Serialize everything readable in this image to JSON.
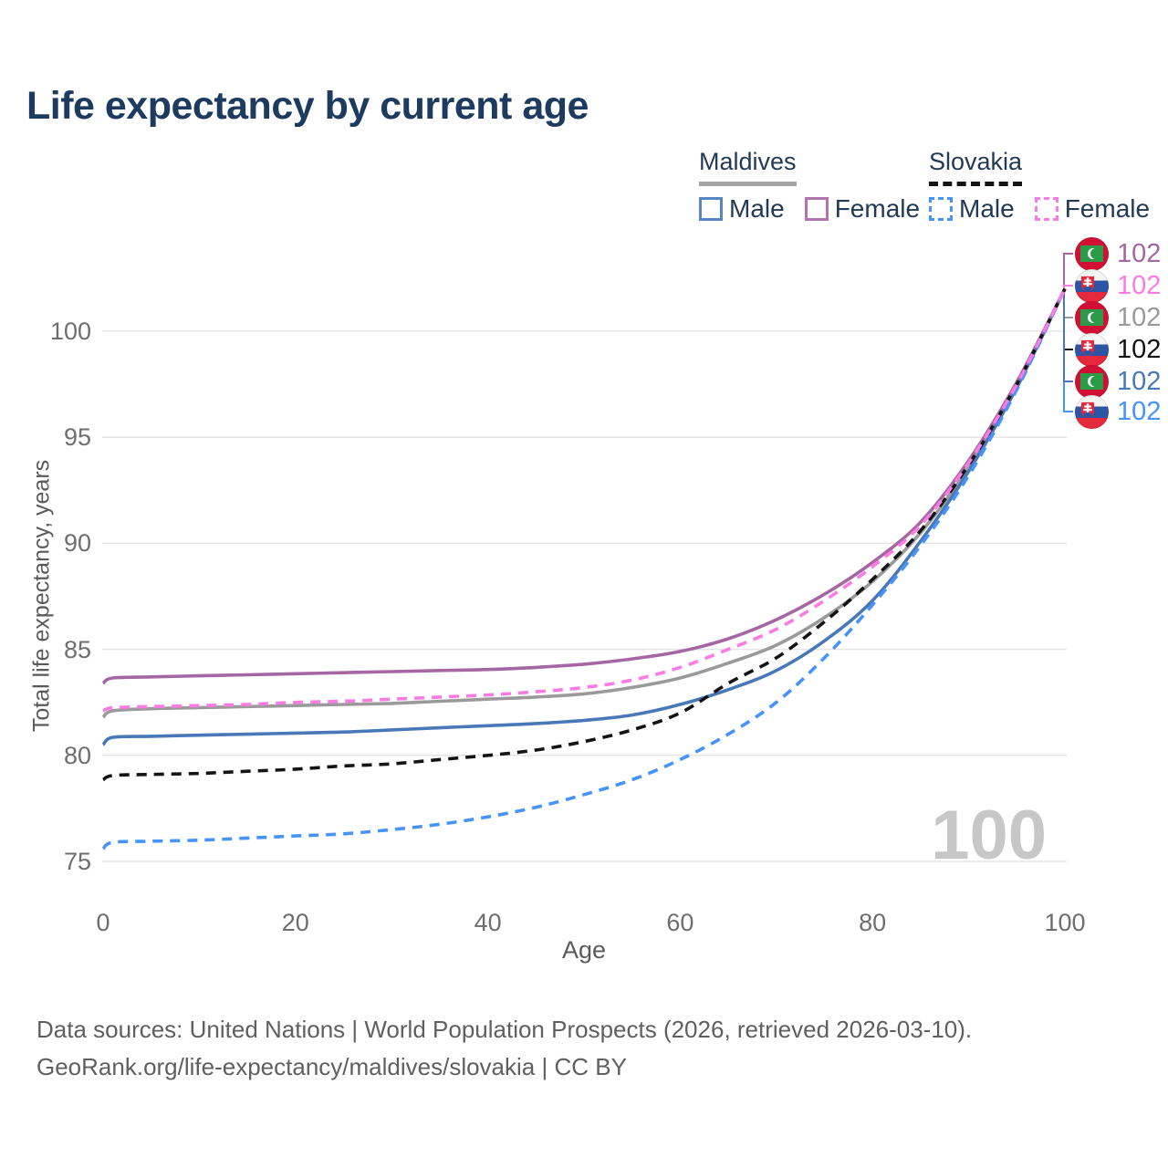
{
  "title": "Life expectancy by current age",
  "legend": {
    "groups": [
      {
        "country": "Maldives",
        "line_style": "solid",
        "items": [
          {
            "label": "Male",
            "color": "#5b84c4"
          },
          {
            "label": "Female",
            "color": "#b273ae"
          }
        ]
      },
      {
        "country": "Slovakia",
        "line_style": "dashed",
        "items": [
          {
            "label": "Male",
            "color": "#4693fa"
          },
          {
            "label": "Female",
            "color": "#fb7be4"
          }
        ]
      }
    ]
  },
  "chart_data": {
    "type": "line",
    "xlabel": "Age",
    "ylabel": "Total life expectancy, years",
    "xticks": [
      0,
      20,
      40,
      60,
      80,
      100
    ],
    "yticks": [
      75,
      80,
      85,
      90,
      95,
      100
    ],
    "xlim": [
      0,
      100
    ],
    "ylim": [
      75,
      102
    ],
    "grid": "horizontal",
    "age_counter": "100",
    "x": [
      0,
      1,
      5,
      10,
      15,
      20,
      25,
      30,
      35,
      40,
      45,
      50,
      55,
      60,
      65,
      70,
      75,
      80,
      85,
      90,
      95,
      100
    ],
    "series": [
      {
        "name": "Maldives Female",
        "country": "Maldives",
        "sex": "Female",
        "flag": "mv",
        "style": "solid",
        "color": "#a666a3",
        "end_label": "102",
        "values": [
          83.4,
          83.65,
          83.7,
          83.75,
          83.8,
          83.85,
          83.9,
          83.95,
          84.0,
          84.05,
          84.15,
          84.3,
          84.55,
          84.9,
          85.5,
          86.4,
          87.6,
          89.1,
          91.0,
          93.9,
          97.6,
          102
        ]
      },
      {
        "name": "Slovakia Female",
        "country": "Slovakia",
        "sex": "Female",
        "flag": "sk",
        "style": "dashed",
        "color": "#fb7be4",
        "end_label": "102",
        "values": [
          82.1,
          82.25,
          82.3,
          82.35,
          82.4,
          82.5,
          82.55,
          82.65,
          82.75,
          82.85,
          83.0,
          83.2,
          83.55,
          84.15,
          85.0,
          85.95,
          87.3,
          88.9,
          90.85,
          93.8,
          97.5,
          102
        ]
      },
      {
        "name": "Maldives",
        "country": "Maldives",
        "sex": "Both",
        "flag": "mv",
        "style": "solid",
        "color": "#9a9a9a",
        "end_label": "102",
        "values": [
          81.8,
          82.1,
          82.2,
          82.25,
          82.3,
          82.35,
          82.4,
          82.45,
          82.55,
          82.65,
          82.75,
          82.9,
          83.2,
          83.65,
          84.35,
          85.2,
          86.5,
          88.2,
          90.5,
          93.6,
          97.45,
          102
        ]
      },
      {
        "name": "Slovakia",
        "country": "Slovakia",
        "sex": "Both",
        "flag": "sk",
        "style": "dashed",
        "color": "#141414",
        "end_label": "102",
        "values": [
          78.85,
          79.05,
          79.1,
          79.15,
          79.25,
          79.35,
          79.5,
          79.6,
          79.8,
          80.0,
          80.25,
          80.65,
          81.2,
          82.0,
          83.4,
          84.6,
          86.3,
          88.3,
          90.6,
          93.7,
          97.5,
          102
        ]
      },
      {
        "name": "Maldives Male",
        "country": "Maldives",
        "sex": "Male",
        "flag": "mv",
        "style": "solid",
        "color": "#4878b8",
        "end_label": "102",
        "values": [
          80.5,
          80.85,
          80.9,
          80.95,
          81.0,
          81.05,
          81.1,
          81.2,
          81.3,
          81.4,
          81.5,
          81.65,
          81.9,
          82.4,
          83.1,
          84.0,
          85.4,
          87.3,
          90.1,
          93.4,
          97.35,
          102
        ]
      },
      {
        "name": "Slovakia Male",
        "country": "Slovakia",
        "sex": "Male",
        "flag": "sk",
        "style": "dashed",
        "color": "#4693fa",
        "end_label": "102",
        "values": [
          75.6,
          75.9,
          75.95,
          76.0,
          76.1,
          76.2,
          76.3,
          76.5,
          76.75,
          77.1,
          77.55,
          78.15,
          78.85,
          79.8,
          81.0,
          82.5,
          84.6,
          87.1,
          89.9,
          93.2,
          97.25,
          102
        ]
      }
    ]
  },
  "footer": {
    "line1": "Data sources: United Nations | World Population Prospects (2026, retrieved 2026-03-10).",
    "line2": "GeoRank.org/life-expectancy/maldives/slovakia | CC BY"
  }
}
